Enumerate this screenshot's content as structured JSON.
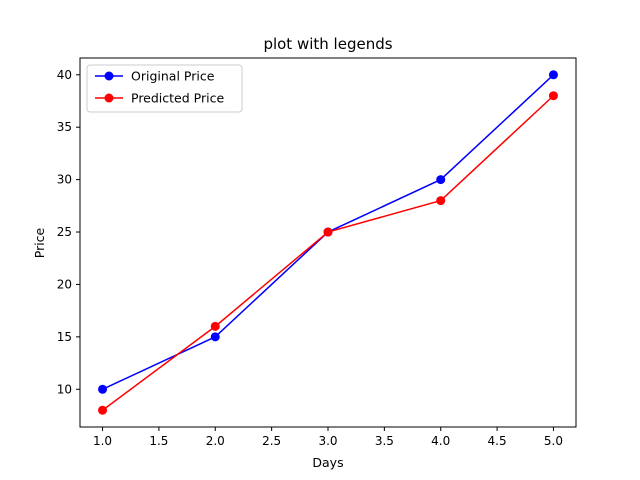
{
  "chart_data": {
    "type": "line",
    "title": "plot with legends",
    "xlabel": "Days",
    "ylabel": "Price",
    "x": [
      1.0,
      2.0,
      3.0,
      4.0,
      5.0
    ],
    "xlim": [
      0.8,
      5.2
    ],
    "ylim": [
      6.4,
      41.6
    ],
    "xticks": [
      "1.0",
      "1.5",
      "2.0",
      "2.5",
      "3.0",
      "3.5",
      "4.0",
      "4.5",
      "5.0"
    ],
    "yticks": [
      "10",
      "15",
      "20",
      "25",
      "30",
      "35",
      "40"
    ],
    "grid": false,
    "legend_position": "upper-left",
    "series": [
      {
        "name": "Original Price",
        "color": "#0000ff",
        "marker": "circle",
        "values": [
          10,
          15,
          25,
          30,
          40
        ]
      },
      {
        "name": "Predicted Price",
        "color": "#ff0000",
        "marker": "circle",
        "values": [
          8,
          16,
          25,
          28,
          38
        ]
      }
    ]
  }
}
